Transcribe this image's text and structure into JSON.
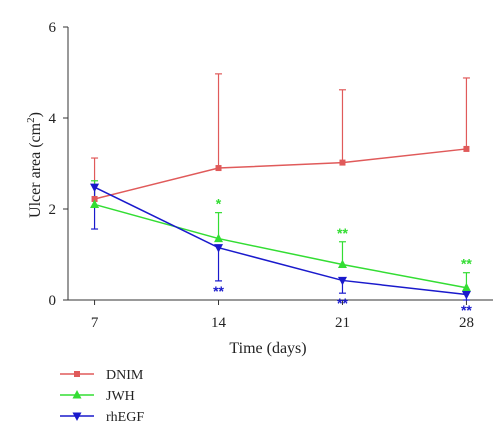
{
  "chart_data": {
    "type": "line",
    "xlabel": "Time (days)",
    "ylabel_main": "Ulcer area (cm",
    "ylabel_sup": "2",
    "ylabel_close": ")",
    "x": [
      7,
      14,
      21,
      28
    ],
    "x_tick_labels": [
      "7",
      "14",
      "21",
      "28"
    ],
    "xlim": [
      5.5,
      29.5
    ],
    "ylim": [
      0,
      6
    ],
    "y_ticks": [
      0,
      2,
      4,
      6
    ],
    "y_tick_labels": [
      "0",
      "2",
      "4",
      "6"
    ],
    "grid": false,
    "legend_position": "bottom-left",
    "series": [
      {
        "name": "DNIM",
        "color": "#e05a5a",
        "marker": "square",
        "values": [
          2.22,
          2.9,
          3.02,
          3.32
        ],
        "error_upper": [
          0.9,
          2.07,
          1.6,
          1.56
        ],
        "error_lower": [
          0,
          0,
          0,
          0
        ]
      },
      {
        "name": "JWH",
        "color": "#33dd33",
        "marker": "triangle-up",
        "values": [
          2.1,
          1.35,
          0.78,
          0.27
        ],
        "error_upper": [
          0.52,
          0.57,
          0.5,
          0.33
        ],
        "error_lower": [
          0,
          0,
          0,
          0
        ],
        "significance": [
          "",
          "*",
          "**",
          "**"
        ]
      },
      {
        "name": "rhEGF",
        "color": "#1a1acc",
        "marker": "triangle-down",
        "values": [
          2.48,
          1.15,
          0.43,
          0.12
        ],
        "error_upper": [
          0,
          0,
          0,
          0
        ],
        "error_lower": [
          0.92,
          0.73,
          0.28,
          0.12
        ],
        "significance": [
          "",
          "**",
          "**",
          "**"
        ]
      }
    ]
  }
}
